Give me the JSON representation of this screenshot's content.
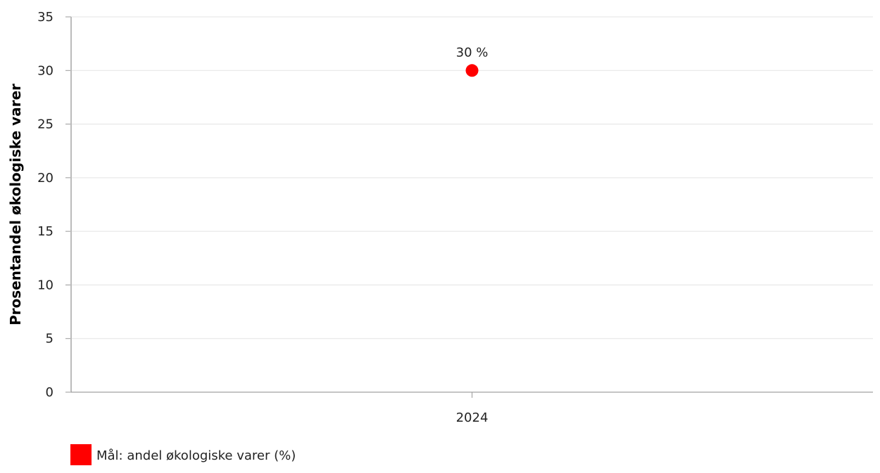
{
  "chart_data": {
    "type": "scatter",
    "title": "",
    "xlabel": "",
    "ylabel": "Prosentandel økologiske varer",
    "categories": [
      "2024"
    ],
    "ylim": [
      0,
      35
    ],
    "yticks": [
      0,
      5,
      10,
      15,
      20,
      25,
      30,
      35
    ],
    "grid": true,
    "legend_position": "bottom-left",
    "series": [
      {
        "name": "Mål: andel økologiske varer (%)",
        "color": "#ff0000",
        "values": [
          30
        ],
        "data_labels": [
          "30 %"
        ]
      }
    ]
  }
}
